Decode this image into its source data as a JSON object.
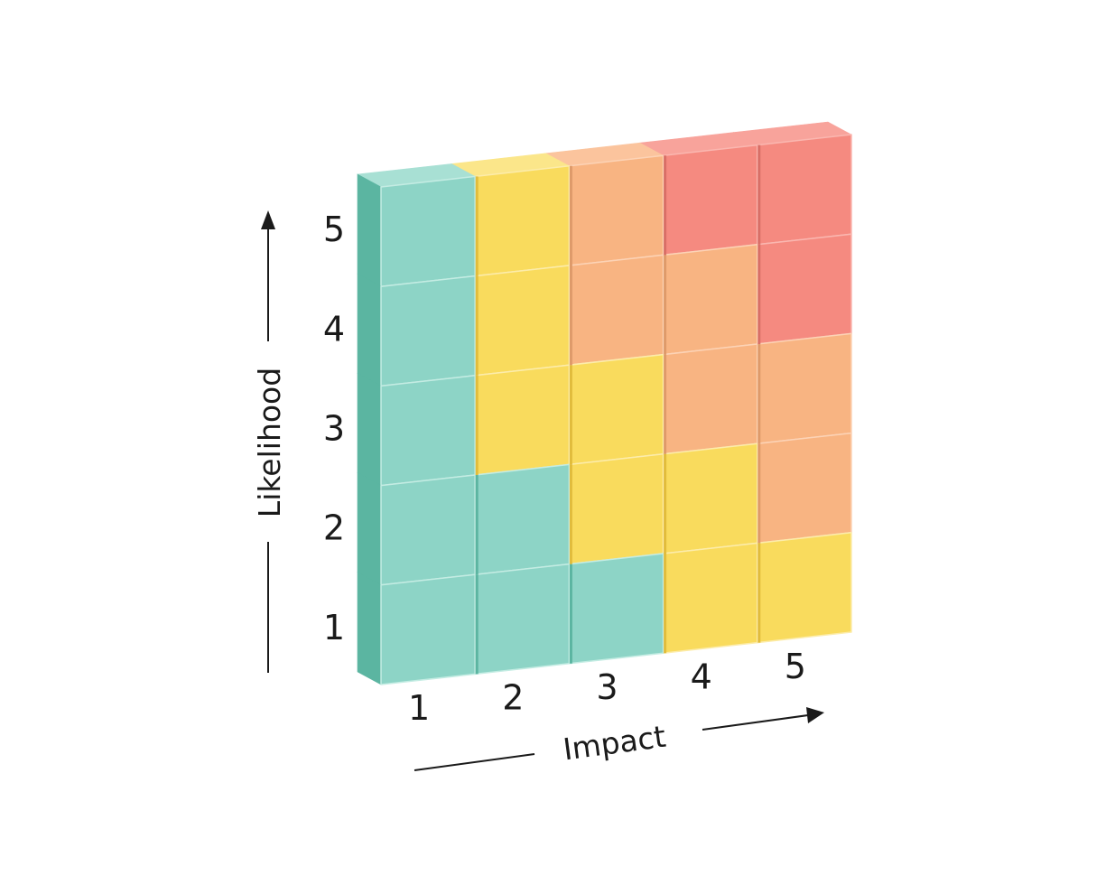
{
  "chart_data": {
    "type": "heatmap",
    "title": "",
    "xlabel": "Impact",
    "ylabel": "Likelihood",
    "x_categories": [
      "1",
      "2",
      "3",
      "4",
      "5"
    ],
    "y_categories": [
      "1",
      "2",
      "3",
      "4",
      "5"
    ],
    "risk_levels": [
      [
        0,
        0,
        0,
        1,
        1
      ],
      [
        0,
        0,
        1,
        1,
        2
      ],
      [
        0,
        1,
        1,
        2,
        2
      ],
      [
        0,
        1,
        2,
        2,
        3
      ],
      [
        0,
        1,
        2,
        3,
        3
      ]
    ],
    "level_colors": {
      "0": {
        "front": "#8dd4c6",
        "side": "#5bb5a1",
        "top": "#a8e0d4",
        "seam": "#c4ece3"
      },
      "1": {
        "front": "#f9db5d",
        "side": "#e1bc3c",
        "top": "#fbe68a",
        "seam": "#fcecab"
      },
      "2": {
        "front": "#f8b482",
        "side": "#de9a6a",
        "top": "#fbc49d",
        "seam": "#fcd3b6"
      },
      "3": {
        "front": "#f58a80",
        "side": "#d86f67",
        "top": "#f8a39b",
        "seam": "#fab7b0"
      }
    },
    "grid": false,
    "legend": "none"
  }
}
